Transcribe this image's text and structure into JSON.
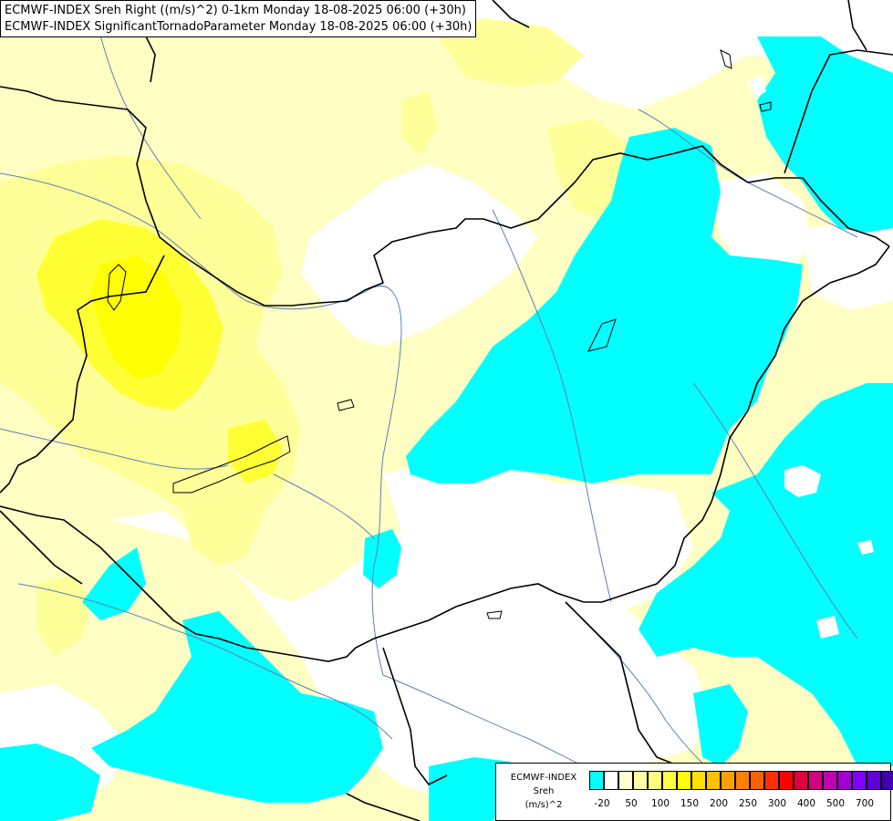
{
  "titles": {
    "line1": "ECMWF-INDEX Sreh Right ((m/s)^2) 0-1km Monday 18-08-2025 06:00 (+30h)",
    "line2": "ECMWF-INDEX SignificantTornadoParameter Monday 18-08-2025 06:00 (+30h)"
  },
  "legend": {
    "source": "ECMWF-INDEX",
    "variable": "Sreh",
    "unit": "(m/s)^2",
    "colors": [
      "#00ffff",
      "#ffffff",
      "#ffffd0",
      "#ffffa8",
      "#ffff80",
      "#ffff40",
      "#ffff00",
      "#ffe000",
      "#ffc000",
      "#ffa000",
      "#ff8000",
      "#ff6000",
      "#ff3000",
      "#ff0000",
      "#e00040",
      "#d00080",
      "#c000b0",
      "#a000d0",
      "#8000ff",
      "#6000d8",
      "#4000b0",
      "#200090",
      "#000080"
    ],
    "ticks": [
      "-20",
      "50",
      "100",
      "150",
      "200",
      "250",
      "300",
      "400",
      "500",
      "700"
    ]
  },
  "palette": {
    "cyan": "#00ffff",
    "pale_yellow": "#ffffc0",
    "light_yellow": "#ffff99",
    "yellow": "#ffff33",
    "white": "#ffffff",
    "border": "#000000",
    "river": "#5f7fb0"
  }
}
